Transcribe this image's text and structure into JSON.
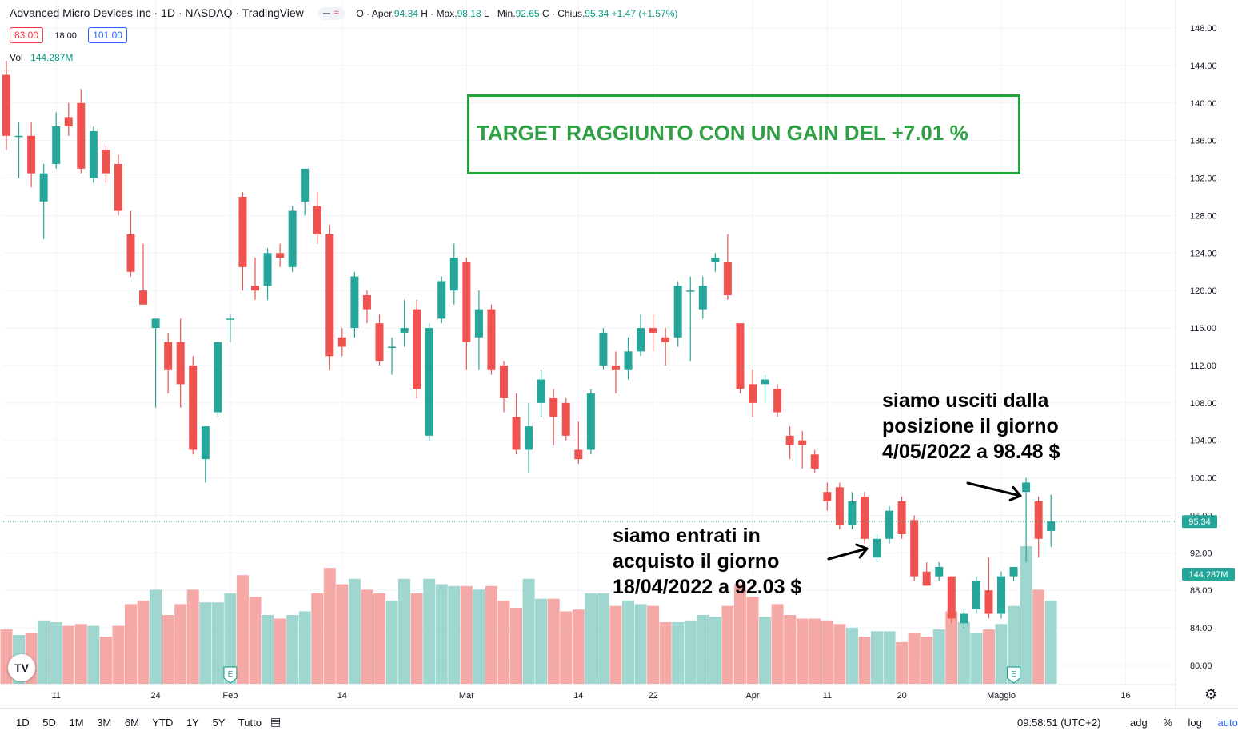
{
  "header": {
    "symbol": "Advanced Micro Devices Inc · 1D · NASDAQ · TradingView",
    "ohlc": {
      "o_label": "O · Aper.",
      "o": "94.34",
      "h_label": "H · Max.",
      "h": "98.18",
      "l_label": "L · Min.",
      "l": "92.65",
      "c_label": "C · Chius.",
      "c": "95.34",
      "change": "+1.47 (+1.57%)"
    },
    "pill_icon": "wave-icon",
    "bid": "83.00",
    "spread": "18.00",
    "ask": "101.00",
    "vol_label": "Vol",
    "vol_value": "144.287M"
  },
  "annotations": {
    "target": "TARGET RAGGIUNTO CON UN GAIN DEL  +7.01 %",
    "entry": [
      "siamo entrati in",
      "acquisto il giorno",
      "18/04/2022 a 92.03 $"
    ],
    "exit": [
      "siamo usciti dalla",
      "posizione il giorno",
      "4/05/2022 a 98.48 $"
    ]
  },
  "toolbar": {
    "ranges": [
      "1D",
      "5D",
      "1M",
      "3M",
      "6M",
      "YTD",
      "1Y",
      "5Y",
      "Tutto"
    ],
    "calendar_icon": "calendar-icon",
    "clock": "09:58:51 (UTC+2)",
    "options": [
      "adg",
      "%",
      "log"
    ],
    "auto": "auto",
    "gear_icon": "gear-icon",
    "logo": "TV"
  },
  "colors": {
    "up": "#26a69a",
    "down": "#ef5350",
    "vol_up": "#9fd6cf",
    "vol_down": "#f5a9a7",
    "grid": "#f0f3fa",
    "accent_green": "#2fa043",
    "price_label": "#26a69a"
  },
  "chart_data": {
    "type": "candlestick",
    "title": "Advanced Micro Devices Inc · 1D · NASDAQ",
    "ylim": [
      78,
      150
    ],
    "y_ticks": [
      "80.00",
      "84.00",
      "88.00",
      "92.00",
      "96.00",
      "100.00",
      "104.00",
      "108.00",
      "112.00",
      "116.00",
      "120.00",
      "124.00",
      "128.00",
      "132.00",
      "136.00",
      "140.00",
      "144.00",
      "148.00"
    ],
    "x_ticks": [
      {
        "label": "11",
        "index": 4
      },
      {
        "label": "24",
        "index": 12
      },
      {
        "label": "Feb",
        "index": 18
      },
      {
        "label": "14",
        "index": 27
      },
      {
        "label": "Mar",
        "index": 37
      },
      {
        "label": "14",
        "index": 46
      },
      {
        "label": "22",
        "index": 52
      },
      {
        "label": "Apr",
        "index": 60
      },
      {
        "label": "11",
        "index": 66
      },
      {
        "label": "20",
        "index": 72
      },
      {
        "label": "Maggio",
        "index": 80
      },
      {
        "label": "16",
        "index": 90
      }
    ],
    "last_price": "95.34",
    "last_volume": "144.287M",
    "earnings_markers": [
      {
        "label": "E",
        "index": 18
      },
      {
        "label": "E",
        "index": 81
      }
    ],
    "candles": [
      {
        "o": 143.0,
        "h": 144.5,
        "l": 135.0,
        "c": 136.5,
        "v": 30
      },
      {
        "o": 136.5,
        "h": 138.0,
        "l": 132.0,
        "c": 136.5,
        "v": 27
      },
      {
        "o": 136.5,
        "h": 138.0,
        "l": 131.0,
        "c": 132.5,
        "v": 28
      },
      {
        "o": 129.5,
        "h": 133.5,
        "l": 125.5,
        "c": 132.5,
        "v": 35
      },
      {
        "o": 133.5,
        "h": 139.0,
        "l": 133.0,
        "c": 137.5,
        "v": 34
      },
      {
        "o": 138.5,
        "h": 140.0,
        "l": 136.5,
        "c": 137.5,
        "v": 32
      },
      {
        "o": 140.0,
        "h": 141.5,
        "l": 132.5,
        "c": 133.0,
        "v": 33
      },
      {
        "o": 132.0,
        "h": 137.5,
        "l": 131.5,
        "c": 137.0,
        "v": 32
      },
      {
        "o": 135.0,
        "h": 135.5,
        "l": 131.5,
        "c": 132.5,
        "v": 26
      },
      {
        "o": 133.5,
        "h": 134.5,
        "l": 128.0,
        "c": 128.5,
        "v": 32
      },
      {
        "o": 126.0,
        "h": 128.5,
        "l": 121.5,
        "c": 122.0,
        "v": 44
      },
      {
        "o": 120.0,
        "h": 125.0,
        "l": 118.5,
        "c": 118.5,
        "v": 46
      },
      {
        "o": 116.0,
        "h": 117.0,
        "l": 107.5,
        "c": 117.0,
        "v": 52
      },
      {
        "o": 114.5,
        "h": 115.5,
        "l": 109.0,
        "c": 111.5,
        "v": 38
      },
      {
        "o": 114.5,
        "h": 117.0,
        "l": 107.5,
        "c": 110.0,
        "v": 44
      },
      {
        "o": 112.0,
        "h": 113.0,
        "l": 102.5,
        "c": 103.0,
        "v": 52
      },
      {
        "o": 102.0,
        "h": 105.5,
        "l": 99.5,
        "c": 105.5,
        "v": 45
      },
      {
        "o": 107.0,
        "h": 114.5,
        "l": 106.5,
        "c": 114.5,
        "v": 45
      },
      {
        "o": 117.0,
        "h": 117.5,
        "l": 114.5,
        "c": 117.0,
        "v": 50
      },
      {
        "o": 130.0,
        "h": 130.5,
        "l": 120.0,
        "c": 122.5,
        "v": 60
      },
      {
        "o": 120.5,
        "h": 123.5,
        "l": 119.0,
        "c": 120.0,
        "v": 48
      },
      {
        "o": 120.5,
        "h": 124.5,
        "l": 119.0,
        "c": 124.0,
        "v": 38
      },
      {
        "o": 124.0,
        "h": 125.0,
        "l": 122.5,
        "c": 123.5,
        "v": 36
      },
      {
        "o": 122.5,
        "h": 129.0,
        "l": 122.0,
        "c": 128.5,
        "v": 38
      },
      {
        "o": 129.5,
        "h": 133.0,
        "l": 128.0,
        "c": 133.0,
        "v": 40
      },
      {
        "o": 129.0,
        "h": 130.5,
        "l": 125.0,
        "c": 126.0,
        "v": 50
      },
      {
        "o": 126.0,
        "h": 127.0,
        "l": 111.5,
        "c": 113.0,
        "v": 64
      },
      {
        "o": 115.0,
        "h": 116.0,
        "l": 113.0,
        "c": 114.0,
        "v": 55
      },
      {
        "o": 116.0,
        "h": 122.0,
        "l": 115.0,
        "c": 121.5,
        "v": 58
      },
      {
        "o": 119.5,
        "h": 120.0,
        "l": 116.5,
        "c": 118.0,
        "v": 52
      },
      {
        "o": 116.5,
        "h": 117.5,
        "l": 112.0,
        "c": 112.5,
        "v": 50
      },
      {
        "o": 114.0,
        "h": 115.0,
        "l": 111.0,
        "c": 114.0,
        "v": 46
      },
      {
        "o": 115.5,
        "h": 119.0,
        "l": 114.0,
        "c": 116.0,
        "v": 58
      },
      {
        "o": 118.0,
        "h": 119.0,
        "l": 108.5,
        "c": 109.5,
        "v": 50
      },
      {
        "o": 104.5,
        "h": 116.5,
        "l": 104.0,
        "c": 116.0,
        "v": 58
      },
      {
        "o": 117.0,
        "h": 121.5,
        "l": 116.5,
        "c": 121.0,
        "v": 55
      },
      {
        "o": 120.0,
        "h": 125.0,
        "l": 118.5,
        "c": 123.5,
        "v": 54
      },
      {
        "o": 123.0,
        "h": 123.5,
        "l": 111.5,
        "c": 114.5,
        "v": 54
      },
      {
        "o": 115.0,
        "h": 120.0,
        "l": 111.5,
        "c": 118.0,
        "v": 52
      },
      {
        "o": 118.0,
        "h": 118.5,
        "l": 111.0,
        "c": 111.5,
        "v": 54
      },
      {
        "o": 112.0,
        "h": 112.5,
        "l": 107.0,
        "c": 108.5,
        "v": 46
      },
      {
        "o": 106.5,
        "h": 109.0,
        "l": 102.5,
        "c": 103.0,
        "v": 42
      },
      {
        "o": 103.0,
        "h": 108.0,
        "l": 100.5,
        "c": 105.5,
        "v": 58
      },
      {
        "o": 108.0,
        "h": 111.5,
        "l": 106.5,
        "c": 110.5,
        "v": 47
      },
      {
        "o": 108.5,
        "h": 109.5,
        "l": 103.5,
        "c": 106.5,
        "v": 47
      },
      {
        "o": 108.0,
        "h": 108.5,
        "l": 104.0,
        "c": 104.5,
        "v": 40
      },
      {
        "o": 103.0,
        "h": 106.0,
        "l": 101.5,
        "c": 102.0,
        "v": 41
      },
      {
        "o": 103.0,
        "h": 109.5,
        "l": 102.5,
        "c": 109.0,
        "v": 50
      },
      {
        "o": 112.0,
        "h": 116.0,
        "l": 111.5,
        "c": 115.5,
        "v": 50
      },
      {
        "o": 112.0,
        "h": 113.5,
        "l": 109.0,
        "c": 111.5,
        "v": 43
      },
      {
        "o": 111.5,
        "h": 115.0,
        "l": 110.5,
        "c": 113.5,
        "v": 46
      },
      {
        "o": 113.5,
        "h": 117.5,
        "l": 113.0,
        "c": 116.0,
        "v": 44
      },
      {
        "o": 116.0,
        "h": 117.5,
        "l": 113.5,
        "c": 115.5,
        "v": 43
      },
      {
        "o": 115.0,
        "h": 116.0,
        "l": 112.0,
        "c": 114.5,
        "v": 34
      },
      {
        "o": 115.0,
        "h": 121.0,
        "l": 114.0,
        "c": 120.5,
        "v": 34
      },
      {
        "o": 120.0,
        "h": 121.5,
        "l": 112.5,
        "c": 120.0,
        "v": 35
      },
      {
        "o": 118.0,
        "h": 121.5,
        "l": 117.0,
        "c": 120.5,
        "v": 38
      },
      {
        "o": 123.0,
        "h": 124.0,
        "l": 122.0,
        "c": 123.5,
        "v": 37
      },
      {
        "o": 123.0,
        "h": 126.0,
        "l": 119.0,
        "c": 119.5,
        "v": 43
      },
      {
        "o": 116.5,
        "h": 116.5,
        "l": 109.0,
        "c": 109.5,
        "v": 55
      },
      {
        "o": 110.0,
        "h": 111.5,
        "l": 106.5,
        "c": 108.0,
        "v": 48
      },
      {
        "o": 110.0,
        "h": 111.0,
        "l": 108.0,
        "c": 110.5,
        "v": 37
      },
      {
        "o": 109.5,
        "h": 110.0,
        "l": 106.5,
        "c": 107.0,
        "v": 44
      },
      {
        "o": 104.5,
        "h": 105.5,
        "l": 102.0,
        "c": 103.5,
        "v": 38
      },
      {
        "o": 104.0,
        "h": 105.0,
        "l": 101.0,
        "c": 103.5,
        "v": 36
      },
      {
        "o": 102.5,
        "h": 103.0,
        "l": 100.5,
        "c": 101.0,
        "v": 36
      },
      {
        "o": 98.5,
        "h": 99.5,
        "l": 96.5,
        "c": 97.5,
        "v": 35
      },
      {
        "o": 99.0,
        "h": 99.5,
        "l": 94.5,
        "c": 95.0,
        "v": 33
      },
      {
        "o": 95.0,
        "h": 98.5,
        "l": 94.5,
        "c": 97.5,
        "v": 31
      },
      {
        "o": 98.0,
        "h": 98.5,
        "l": 93.0,
        "c": 93.5,
        "v": 26
      },
      {
        "o": 91.5,
        "h": 94.0,
        "l": 91.0,
        "c": 93.5,
        "v": 29
      },
      {
        "o": 93.5,
        "h": 97.0,
        "l": 93.0,
        "c": 96.5,
        "v": 29
      },
      {
        "o": 97.5,
        "h": 98.0,
        "l": 93.5,
        "c": 94.0,
        "v": 23
      },
      {
        "o": 95.5,
        "h": 96.0,
        "l": 89.0,
        "c": 89.5,
        "v": 28
      },
      {
        "o": 90.0,
        "h": 91.0,
        "l": 88.5,
        "c": 88.5,
        "v": 26
      },
      {
        "o": 89.5,
        "h": 91.0,
        "l": 89.0,
        "c": 90.5,
        "v": 30
      },
      {
        "o": 89.5,
        "h": 89.5,
        "l": 84.5,
        "c": 85.0,
        "v": 40
      },
      {
        "o": 84.5,
        "h": 86.0,
        "l": 84.0,
        "c": 85.5,
        "v": 34
      },
      {
        "o": 86.0,
        "h": 89.5,
        "l": 85.5,
        "c": 89.0,
        "v": 28
      },
      {
        "o": 88.0,
        "h": 91.5,
        "l": 85.0,
        "c": 85.5,
        "v": 30
      },
      {
        "o": 85.5,
        "h": 90.0,
        "l": 85.0,
        "c": 89.5,
        "v": 33
      },
      {
        "o": 89.5,
        "h": 90.5,
        "l": 89.0,
        "c": 90.5,
        "v": 43
      },
      {
        "o": 98.5,
        "h": 100.0,
        "l": 91.0,
        "c": 99.5,
        "v": 76
      },
      {
        "o": 97.5,
        "h": 98.0,
        "l": 91.5,
        "c": 93.5,
        "v": 52
      },
      {
        "o": 94.34,
        "h": 98.18,
        "l": 92.65,
        "c": 95.34,
        "v": 46
      }
    ]
  }
}
